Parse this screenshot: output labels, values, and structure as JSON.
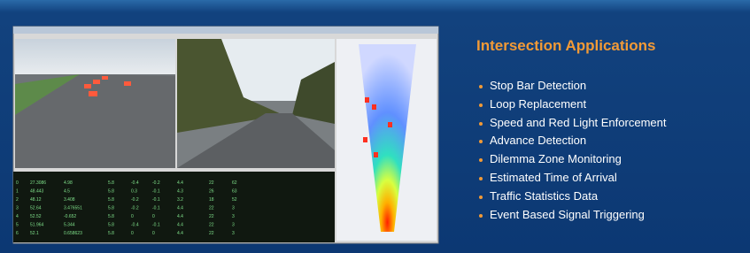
{
  "panel": {
    "title": "Intersection Applications",
    "bullets": [
      "Stop Bar Detection",
      "Loop Replacement",
      "Speed and Red Light Enforcement",
      "Advance Detection",
      "Dilemma Zone Monitoring",
      "Estimated Time of Arrival",
      "Traffic Statistics Data",
      "Event Based Signal Triggering"
    ]
  },
  "table": {
    "rows": [
      [
        "0",
        "27.3086",
        "4.98",
        "5.8",
        "-0.4",
        "-0.2",
        "4.4",
        "22",
        "62"
      ],
      [
        "1",
        "48.443",
        "4.5",
        "5.8",
        "0.3",
        "-0.1",
        "4.3",
        "26",
        "63"
      ],
      [
        "2",
        "48.12",
        "3.408",
        "5.8",
        "-0.2",
        "-0.1",
        "3.2",
        "18",
        "52"
      ],
      [
        "3",
        "52.64",
        "3.476551",
        "5.8",
        "-0.2",
        "-0.1",
        "4.4",
        "22",
        "3"
      ],
      [
        "4",
        "52.52",
        "-0.652",
        "5.8",
        "0",
        "0",
        "4.4",
        "22",
        "3"
      ],
      [
        "5",
        "51.964",
        "5.344",
        "5.8",
        "-0.4",
        "-0.1",
        "4.4",
        "22",
        "3"
      ],
      [
        "6",
        "52.1",
        "0.658623",
        "5.8",
        "0",
        "0",
        "4.4",
        "22",
        "3"
      ]
    ]
  }
}
